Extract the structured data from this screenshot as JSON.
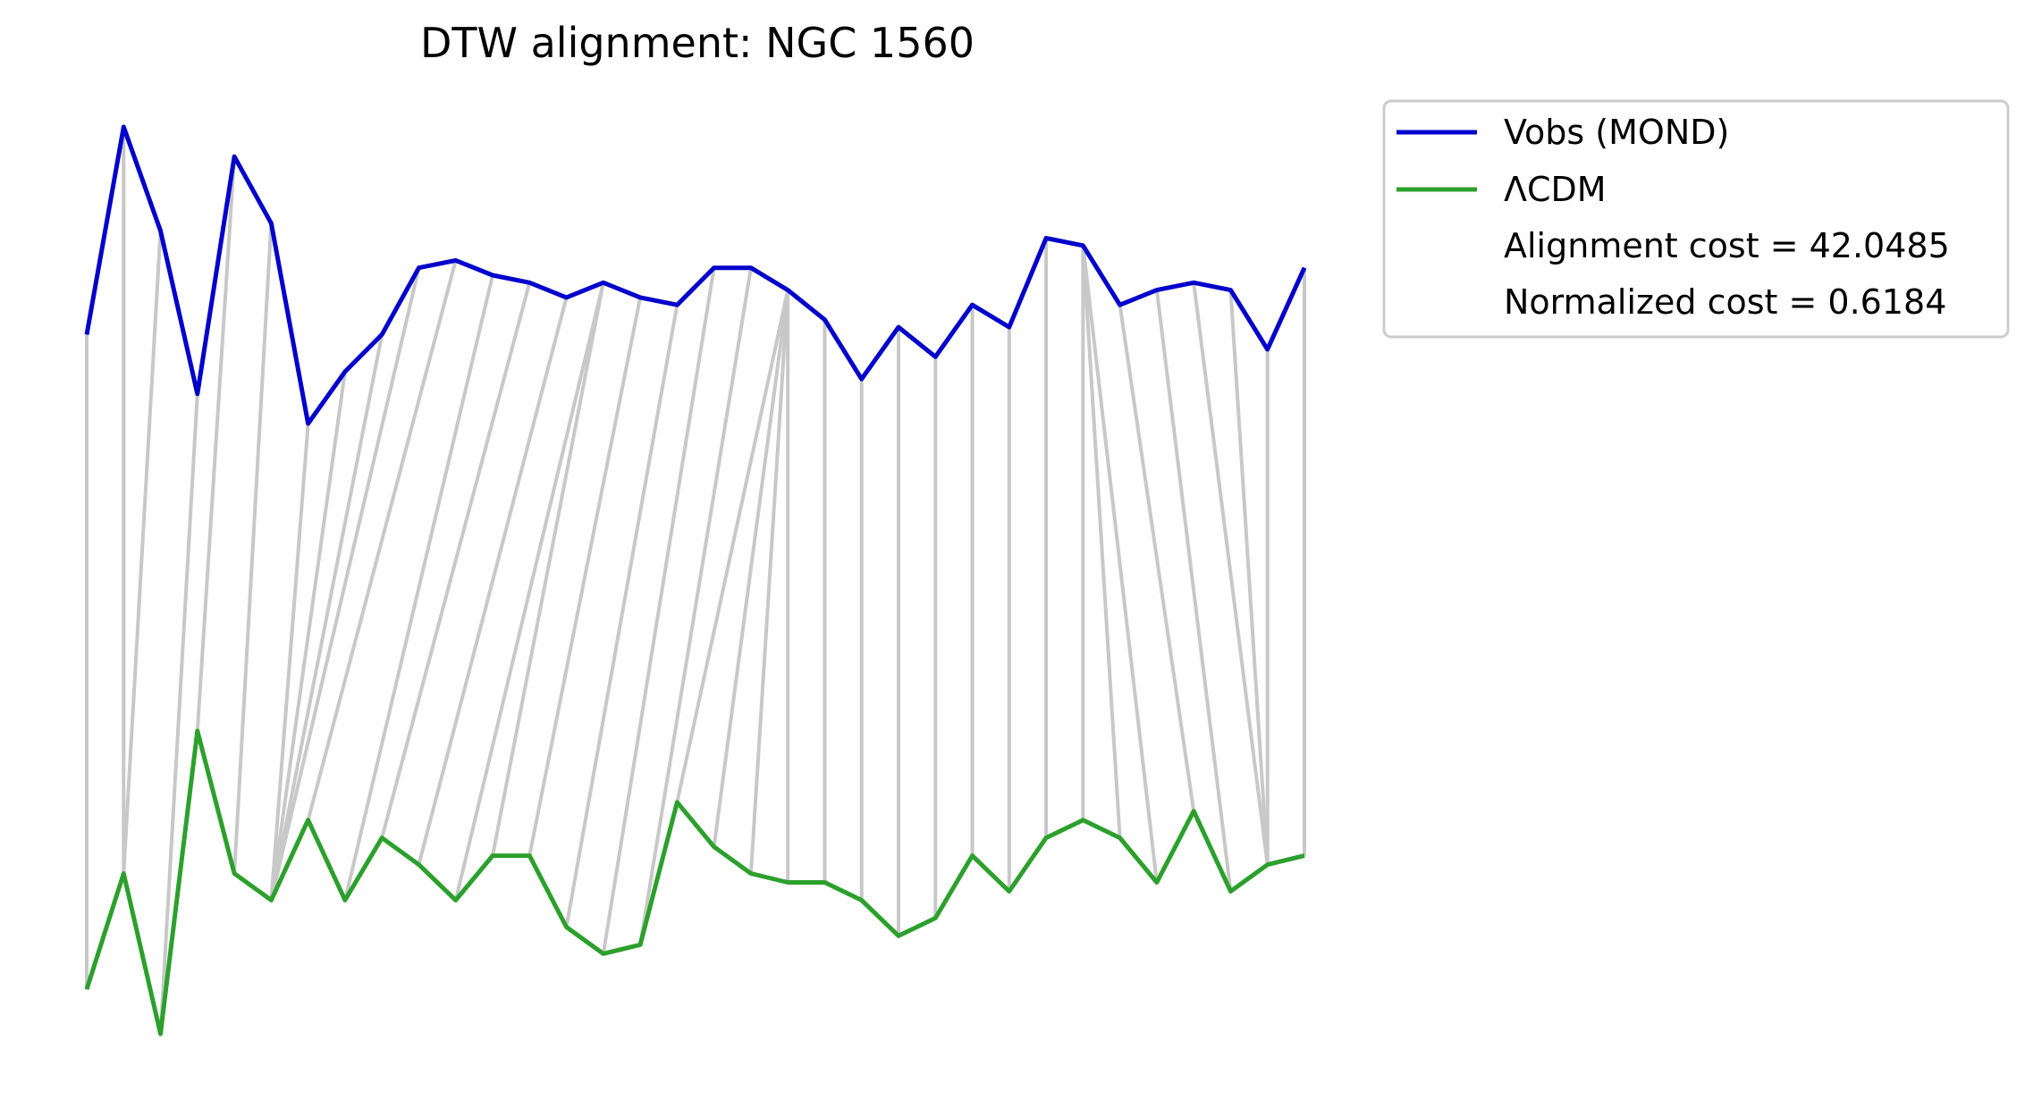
{
  "chart_data": {
    "type": "line",
    "title": "DTW alignment: NGC 1560",
    "xlabel": "",
    "ylabel": "",
    "axes_visible": false,
    "grid": false,
    "legend_position": "outside-top-right",
    "series": [
      {
        "name": "Vobs (MOND)",
        "color": "#0000cc",
        "values": [
          0.72,
          1.0,
          0.86,
          0.64,
          0.96,
          0.87,
          0.6,
          0.67,
          0.72,
          0.81,
          0.82,
          0.8,
          0.79,
          0.77,
          0.79,
          0.77,
          0.76,
          0.81,
          0.81,
          0.78,
          0.74,
          0.66,
          0.73,
          0.69,
          0.76,
          0.73,
          0.85,
          0.84,
          0.76,
          0.78,
          0.79,
          0.78,
          0.7,
          0.81
        ]
      },
      {
        "name": "ΛCDM",
        "color": "#2ca02c",
        "values": [
          0.05,
          0.18,
          0.0,
          0.34,
          0.18,
          0.15,
          0.24,
          0.15,
          0.22,
          0.19,
          0.15,
          0.2,
          0.2,
          0.12,
          0.09,
          0.1,
          0.26,
          0.21,
          0.18,
          0.17,
          0.17,
          0.15,
          0.11,
          0.13,
          0.2,
          0.16,
          0.22,
          0.24,
          0.22,
          0.17,
          0.25,
          0.16,
          0.19,
          0.2
        ]
      }
    ],
    "alignment_pairs": [
      [
        0,
        0
      ],
      [
        1,
        1
      ],
      [
        2,
        1
      ],
      [
        3,
        2
      ],
      [
        4,
        3
      ],
      [
        5,
        4
      ],
      [
        6,
        5
      ],
      [
        7,
        5
      ],
      [
        8,
        5
      ],
      [
        9,
        5
      ],
      [
        10,
        6
      ],
      [
        11,
        7
      ],
      [
        12,
        8
      ],
      [
        13,
        9
      ],
      [
        14,
        10
      ],
      [
        14,
        11
      ],
      [
        15,
        12
      ],
      [
        16,
        13
      ],
      [
        17,
        14
      ],
      [
        18,
        15
      ],
      [
        19,
        16
      ],
      [
        19,
        17
      ],
      [
        19,
        18
      ],
      [
        19,
        19
      ],
      [
        20,
        20
      ],
      [
        21,
        21
      ],
      [
        22,
        22
      ],
      [
        23,
        23
      ],
      [
        24,
        24
      ],
      [
        25,
        25
      ],
      [
        26,
        26
      ],
      [
        27,
        27
      ],
      [
        27,
        28
      ],
      [
        27,
        29
      ],
      [
        28,
        30
      ],
      [
        29,
        31
      ],
      [
        30,
        32
      ],
      [
        31,
        32
      ],
      [
        32,
        32
      ],
      [
        33,
        33
      ]
    ],
    "legend_entries": [
      "Vobs (MOND)",
      "ΛCDM",
      "Alignment cost = 42.0485",
      "Normalized cost = 0.6184"
    ],
    "alignment_cost_label": "Alignment cost = 42.0485",
    "normalized_cost_label": "Normalized cost = 0.6184",
    "alignment_line_color": "#c8c8c8"
  }
}
